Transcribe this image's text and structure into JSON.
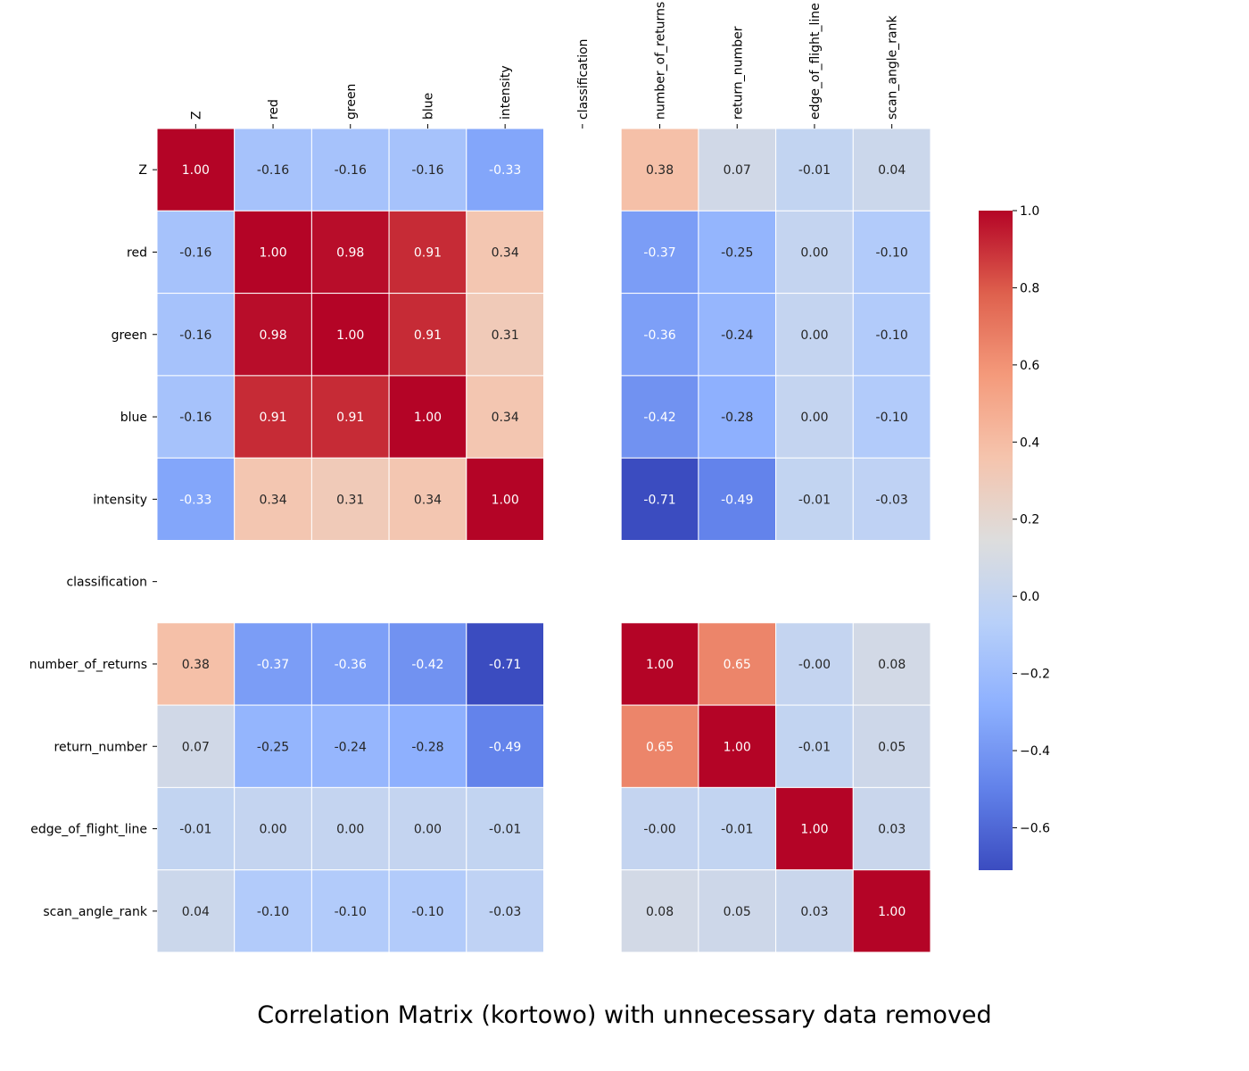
{
  "chart_data": {
    "type": "heatmap",
    "title": "Correlation Matrix (kortowo) with unnecessary data removed",
    "variables": [
      "Z",
      "red",
      "green",
      "blue",
      "intensity",
      "classification",
      "number_of_returns",
      "return_number",
      "edge_of_flight_line",
      "scan_angle_rank"
    ],
    "matrix": [
      [
        1.0,
        -0.16,
        -0.16,
        -0.16,
        -0.33,
        null,
        0.38,
        0.07,
        -0.01,
        0.04
      ],
      [
        -0.16,
        1.0,
        0.98,
        0.91,
        0.34,
        null,
        -0.37,
        -0.25,
        0.0,
        -0.1
      ],
      [
        -0.16,
        0.98,
        1.0,
        0.91,
        0.31,
        null,
        -0.36,
        -0.24,
        0.0,
        -0.1
      ],
      [
        -0.16,
        0.91,
        0.91,
        1.0,
        0.34,
        null,
        -0.42,
        -0.28,
        0.0,
        -0.1
      ],
      [
        -0.33,
        0.34,
        0.31,
        0.34,
        1.0,
        null,
        -0.71,
        -0.49,
        -0.01,
        -0.03
      ],
      [
        null,
        null,
        null,
        null,
        null,
        null,
        null,
        null,
        null,
        null
      ],
      [
        0.38,
        -0.37,
        -0.36,
        -0.42,
        -0.71,
        null,
        1.0,
        0.65,
        -0.0,
        0.08
      ],
      [
        0.07,
        -0.25,
        -0.24,
        -0.28,
        -0.49,
        null,
        0.65,
        1.0,
        -0.01,
        0.05
      ],
      [
        -0.01,
        0.0,
        0.0,
        0.0,
        -0.01,
        null,
        -0.0,
        -0.01,
        1.0,
        0.03
      ],
      [
        0.04,
        -0.1,
        -0.1,
        -0.1,
        -0.03,
        null,
        0.08,
        0.05,
        0.03,
        1.0
      ]
    ],
    "annotation_format": "0.00",
    "colormap": "coolwarm",
    "colorbar": {
      "range": [
        -0.71,
        1.0
      ],
      "ticks": [
        -0.6,
        -0.4,
        -0.2,
        0.0,
        0.2,
        0.4,
        0.6,
        0.8,
        1.0
      ],
      "tick_labels": [
        "−0.6",
        "−0.4",
        "−0.2",
        "0.0",
        "0.2",
        "0.4",
        "0.6",
        "0.8",
        "1.0"
      ],
      "placement": "right"
    },
    "x_tick_position": "top",
    "grid_lines": "white"
  }
}
